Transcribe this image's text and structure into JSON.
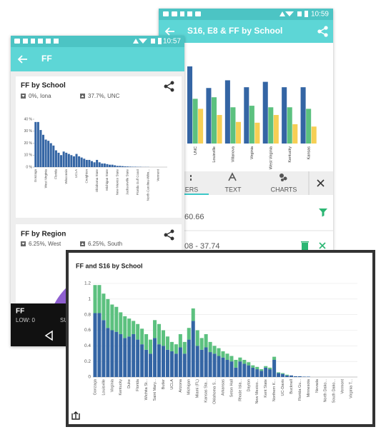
{
  "back_screen": {
    "status_time": "10:59",
    "title": "S16, E8 & FF by School",
    "chart": {
      "type": "bar",
      "categories": [
        "UNC",
        "Louisville",
        "Villanova",
        "Virginia",
        "West Virginia",
        "Kentucky",
        "Kansas"
      ],
      "series": [
        {
          "color": "#3465a4",
          "values": [
            1.0,
            0.72,
            0.82,
            0.73,
            0.8,
            0.73,
            0.73
          ]
        },
        {
          "color": "#5cc17f",
          "values": [
            0.58,
            0.6,
            0.47,
            0.49,
            0.47,
            0.47,
            0.45
          ]
        },
        {
          "color": "#f6cf55",
          "values": [
            0.45,
            0.37,
            0.28,
            0.27,
            0.37,
            0.25,
            0.22
          ]
        }
      ]
    },
    "tabs": [
      "ERS",
      "TEXT",
      "CHARTS"
    ],
    "rows": [
      "60.66",
      "08 - 37.74"
    ]
  },
  "front_screen": {
    "status_time": "10:57",
    "title": "FF",
    "cards": [
      {
        "title": "FF by School",
        "min_label": "0%, Iona",
        "max_label": "37.7%, UNC",
        "chart": {
          "type": "bar",
          "color": "#3465a4",
          "categories": [
            "Gonzaga",
            null,
            null,
            null,
            "West Virginia",
            null,
            null,
            null,
            "Florida",
            null,
            null,
            null,
            "Wisconsin",
            null,
            null,
            null,
            "UCLA",
            null,
            null,
            null,
            "Creighton",
            null,
            null,
            null,
            "Oklahoma State",
            null,
            null,
            null,
            "Michigan State",
            null,
            null,
            null,
            "New Mexico State",
            null,
            null,
            null,
            "Jacksonville State",
            null,
            null,
            null,
            "Florida Gulf Coast",
            null,
            null,
            null,
            "North Carolina-Wilm...",
            null,
            null,
            null,
            "Vermont",
            null,
            null,
            null
          ],
          "values": [
            37.7,
            37.7,
            31,
            27,
            23,
            22,
            20,
            18,
            14,
            12,
            10,
            13,
            12,
            11,
            10,
            9,
            11,
            9,
            8,
            7,
            6,
            6,
            5,
            4,
            6,
            4,
            3,
            3,
            2.5,
            2,
            2,
            1.5,
            1,
            1,
            0.8,
            0.6,
            0.5,
            0.4,
            0.3,
            0.3,
            0.2,
            0.2,
            0.1,
            0.1,
            0.1,
            0,
            0,
            0,
            0,
            0,
            0,
            0
          ],
          "ylim": [
            0,
            40
          ],
          "yticks": [
            {
              "value": 0,
              "label": "0 %"
            },
            {
              "value": 10,
              "label": "10 %"
            },
            {
              "value": 20,
              "label": "20 %"
            },
            {
              "value": 30,
              "label": "30 %"
            },
            {
              "value": 40,
              "label": "40 %"
            }
          ]
        }
      },
      {
        "title": "FF by Region",
        "min_label": "6.25%, West",
        "max_label": "6.25%, South"
      }
    ],
    "bottom": {
      "title": "FF",
      "low": "LOW: 0",
      "partial": "SU"
    }
  },
  "overlay": {
    "chart": {
      "type": "bar",
      "stacked": true,
      "title": "FF and S16 by School",
      "categories": [
        "Gonzaga",
        null,
        "Louisville",
        null,
        "Virginia",
        null,
        "Kentucky",
        null,
        "Duke",
        null,
        "Florida",
        null,
        "Wichita St...",
        null,
        "Saint Mary...",
        null,
        "Butler",
        null,
        "UCLA",
        null,
        "Arizona",
        null,
        "Michigan",
        null,
        "Miami (FL)",
        null,
        "Kansas Sta...",
        null,
        "Oklahoma S...",
        null,
        "Arkansas",
        null,
        "Seton Hall",
        null,
        "Rhode Isla...",
        null,
        "Dayton",
        null,
        "New Mexico...",
        null,
        "Kent State",
        null,
        "Northern K...",
        null,
        "UC-Davis",
        null,
        "Bucknell",
        null,
        "Florida Gu...",
        null,
        "Minnesota",
        null,
        "Nevada",
        null,
        "North Dako...",
        null,
        "South Dako...",
        null,
        "Vermont",
        null,
        "Virginia T...",
        null
      ],
      "series": [
        {
          "color": "#3465a4",
          "values": [
            0.82,
            0.82,
            0.73,
            0.63,
            0.6,
            0.58,
            0.55,
            0.5,
            0.52,
            0.55,
            0.48,
            0.42,
            0.35,
            0.3,
            0.5,
            0.42,
            0.4,
            0.35,
            0.33,
            0.3,
            0.38,
            0.3,
            0.48,
            0.72,
            0.4,
            0.35,
            0.38,
            0.32,
            0.3,
            0.27,
            0.25,
            0.22,
            0.2,
            0.12,
            0.2,
            0.17,
            0.15,
            0.12,
            0.1,
            0.08,
            0.12,
            0.1,
            0.22,
            0.05,
            0.04,
            0.02,
            0.02,
            0.01,
            0.01,
            0.005,
            0.005,
            0,
            0,
            0,
            0,
            0,
            0,
            0,
            0,
            0,
            0,
            0
          ]
        },
        {
          "color": "#5cc17f",
          "values": [
            0.36,
            0.36,
            0.34,
            0.37,
            0.33,
            0.32,
            0.28,
            0.28,
            0.23,
            0.17,
            0.2,
            0.2,
            0.2,
            0.18,
            0.23,
            0.26,
            0.2,
            0.17,
            0.12,
            0.12,
            0.17,
            0.15,
            0.15,
            0.16,
            0.2,
            0.15,
            0.17,
            0.13,
            0.1,
            0.1,
            0.08,
            0.08,
            0.07,
            0.1,
            0.05,
            0.05,
            0.04,
            0.03,
            0.03,
            0.02,
            0.02,
            0.02,
            0.04,
            0.01,
            0.01,
            0.01,
            0,
            0,
            0,
            0,
            0,
            0,
            0,
            0,
            0,
            0,
            0,
            0,
            0,
            0,
            0,
            0
          ]
        }
      ],
      "ylim": [
        0,
        1.2
      ],
      "yticks": [
        0,
        0.2,
        0.4,
        0.6,
        0.8,
        1,
        1.2
      ],
      "grid": true
    }
  }
}
